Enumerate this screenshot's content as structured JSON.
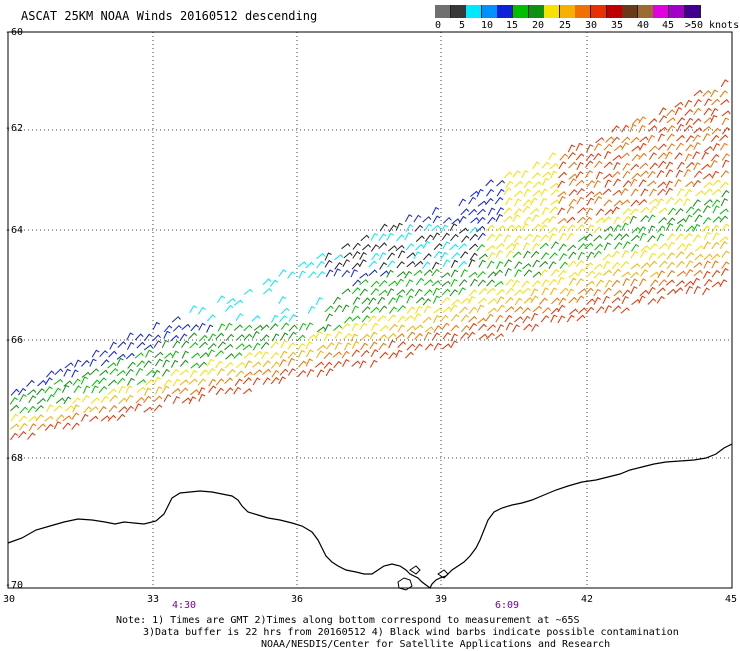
{
  "header": {
    "title": "ASCAT 25KM NOAA Winds 20160512 descending"
  },
  "legend": {
    "colors": [
      "#707070",
      "#383838",
      "#00e8ff",
      "#0090ff",
      "#1020d8",
      "#00bf00",
      "#109010",
      "#f8e000",
      "#f8b000",
      "#f07000",
      "#e83000",
      "#c00000",
      "#6a3a18",
      "#9a6a30",
      "#e000e0",
      "#a000c8",
      "#400090"
    ],
    "labels": [
      "0",
      "5",
      "10",
      "15",
      "20",
      "25",
      "30",
      "35",
      "40",
      "45",
      ">50 knots"
    ],
    "colors_meaning": "wind speed knots"
  },
  "axes": {
    "lat_labels": [
      "-60",
      "-62",
      "-64",
      "-66",
      "-68",
      "-70"
    ],
    "lon_labels": [
      "30",
      "33",
      "36",
      "39",
      "42",
      "45"
    ]
  },
  "times": [
    {
      "label": "4:30"
    },
    {
      "label": "6:09"
    }
  ],
  "notes": {
    "line1": "Note: 1) Times are GMT 2)Times along bottom correspond to measurement at ~65S",
    "line2": "3)Data buffer is 22 hrs from 20160512 4) Black wind barbs indicate possible contamination",
    "line3": "NOAA/NESDIS/Center for Satellite Applications and Research"
  }
}
